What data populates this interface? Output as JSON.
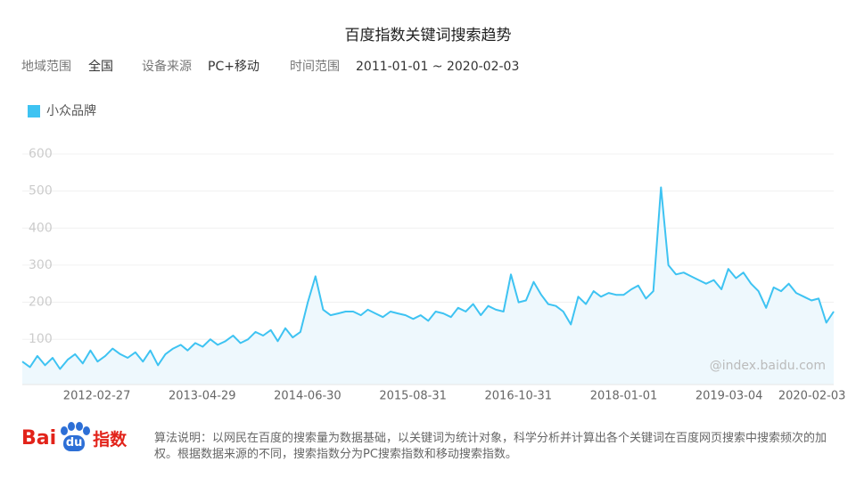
{
  "chart_data": {
    "type": "line",
    "title": "百度指数关键词搜索趋势",
    "x": [
      "2011-05-01",
      "2011-06-01",
      "2011-07-01",
      "2011-08-01",
      "2011-09-01",
      "2011-10-01",
      "2011-11-01",
      "2011-12-01",
      "2012-01-01",
      "2012-02-01",
      "2012-03-01",
      "2012-04-01",
      "2012-05-01",
      "2012-06-01",
      "2012-07-01",
      "2012-08-01",
      "2012-09-01",
      "2012-10-01",
      "2012-11-01",
      "2012-12-01",
      "2013-01-01",
      "2013-02-01",
      "2013-03-01",
      "2013-04-01",
      "2013-05-01",
      "2013-06-01",
      "2013-07-01",
      "2013-08-01",
      "2013-09-01",
      "2013-10-01",
      "2013-11-01",
      "2013-12-01",
      "2014-01-01",
      "2014-02-01",
      "2014-03-01",
      "2014-04-01",
      "2014-05-01",
      "2014-06-01",
      "2014-07-01",
      "2014-08-01",
      "2014-09-01",
      "2014-10-01",
      "2014-11-01",
      "2014-12-01",
      "2015-01-01",
      "2015-02-01",
      "2015-03-01",
      "2015-04-01",
      "2015-05-01",
      "2015-06-01",
      "2015-07-01",
      "2015-08-01",
      "2015-09-01",
      "2015-10-01",
      "2015-11-01",
      "2015-12-01",
      "2016-01-01",
      "2016-02-01",
      "2016-03-01",
      "2016-04-01",
      "2016-05-01",
      "2016-06-01",
      "2016-07-01",
      "2016-08-01",
      "2016-09-01",
      "2016-10-01",
      "2016-11-01",
      "2016-12-01",
      "2017-01-01",
      "2017-02-01",
      "2017-03-01",
      "2017-04-01",
      "2017-05-01",
      "2017-06-01",
      "2017-07-01",
      "2017-08-01",
      "2017-09-01",
      "2017-10-01",
      "2017-11-01",
      "2017-12-01",
      "2018-01-01",
      "2018-02-01",
      "2018-03-01",
      "2018-04-01",
      "2018-05-01",
      "2018-06-01",
      "2018-07-01",
      "2018-08-01",
      "2018-09-01",
      "2018-10-01",
      "2018-11-01",
      "2018-12-01",
      "2019-01-01",
      "2019-02-01",
      "2019-03-01",
      "2019-04-01",
      "2019-05-01",
      "2019-06-01",
      "2019-07-01",
      "2019-08-01",
      "2019-09-01",
      "2019-10-01",
      "2019-11-01",
      "2019-12-01",
      "2020-01-01",
      "2020-02-01",
      "2020-03-01",
      "2020-04-01",
      "2020-05-01"
    ],
    "series": [
      {
        "name": "小众品牌",
        "color": "#3ec3f2",
        "values": [
          40,
          25,
          55,
          30,
          50,
          20,
          45,
          60,
          35,
          70,
          40,
          55,
          75,
          60,
          50,
          65,
          40,
          70,
          30,
          60,
          75,
          85,
          70,
          90,
          80,
          100,
          85,
          95,
          110,
          90,
          100,
          120,
          110,
          125,
          95,
          130,
          105,
          120,
          200,
          270,
          180,
          165,
          170,
          175,
          175,
          165,
          180,
          170,
          160,
          175,
          170,
          165,
          155,
          165,
          150,
          175,
          170,
          160,
          185,
          175,
          195,
          165,
          190,
          180,
          175,
          275,
          200,
          205,
          255,
          220,
          195,
          190,
          175,
          140,
          215,
          195,
          230,
          215,
          225,
          220,
          220,
          235,
          245,
          210,
          230,
          510,
          300,
          275,
          280,
          270,
          260,
          250,
          260,
          235,
          290,
          265,
          280,
          250,
          230,
          185,
          240,
          230,
          250,
          225,
          215,
          205,
          210,
          145,
          175
        ]
      }
    ],
    "xlim": [
      "2011-05-01",
      "2020-05-01"
    ],
    "xticks": [
      "2012-02-27",
      "2013-04-29",
      "2014-06-30",
      "2015-08-31",
      "2016-10-31",
      "2018-01-01",
      "2019-03-04",
      "2020-02-03"
    ],
    "ylim": [
      -22,
      600
    ],
    "yticks": [
      100,
      200,
      300,
      400,
      500,
      600
    ],
    "grid": true,
    "area_color": "#eef8fd"
  },
  "filters": [
    {
      "label": "地域范围",
      "value": "全国"
    },
    {
      "label": "设备来源",
      "value": "PC+移动"
    },
    {
      "label": "时间范围",
      "value": "2011-01-01 ~ 2020-02-03"
    }
  ],
  "watermark": "@index.baidu.com",
  "footer": {
    "logo_left": "Bai",
    "logo_du": "du",
    "logo_right": "指数",
    "note": "算法说明：以网民在百度的搜索量为数据基础，以关键词为统计对象，科学分析并计算出各个关键词在百度网页搜索中搜索频次的加权。根据数据来源的不同，搜索指数分为PC搜索指数和移动搜索指数。"
  }
}
